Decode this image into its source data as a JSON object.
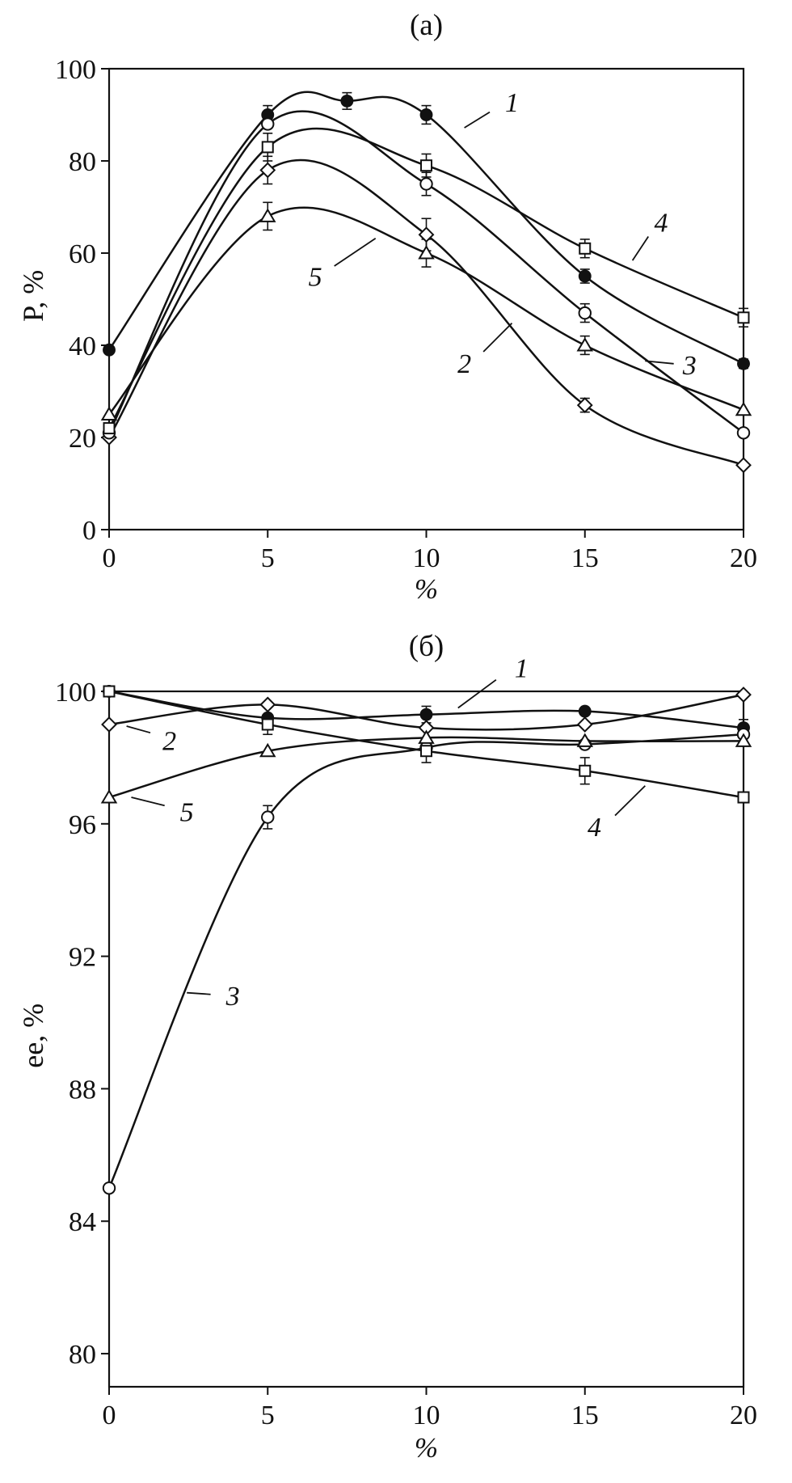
{
  "chart_data": [
    {
      "id": "a",
      "type": "line",
      "title": "(a)",
      "ylabel": "P, %",
      "xlabel": "%",
      "xlim": [
        0,
        20
      ],
      "ylim": [
        0,
        100
      ],
      "xticks": [
        0,
        5,
        10,
        15,
        20
      ],
      "yticks": [
        0,
        20,
        40,
        60,
        80,
        100
      ],
      "grid": false,
      "legend": "numeric labels on curves",
      "series": [
        {
          "name": "1",
          "marker": "circle-filled",
          "points": [
            [
              0,
              39
            ],
            [
              5,
              90
            ],
            [
              7.5,
              93
            ],
            [
              10,
              90
            ],
            [
              15,
              55
            ],
            [
              20,
              36
            ]
          ],
          "errors": [
            0,
            2,
            1.8,
            2,
            1.5,
            1
          ]
        },
        {
          "name": "2",
          "marker": "diamond-open",
          "points": [
            [
              0,
              20
            ],
            [
              5,
              78
            ],
            [
              10,
              64
            ],
            [
              15,
              27
            ],
            [
              20,
              14
            ]
          ],
          "errors": [
            0,
            3,
            3.5,
            1.5,
            0
          ]
        },
        {
          "name": "3",
          "marker": "circle-open",
          "points": [
            [
              0,
              21
            ],
            [
              5,
              88
            ],
            [
              10,
              75
            ],
            [
              15,
              47
            ],
            [
              20,
              21
            ]
          ],
          "errors": [
            0,
            0,
            2.5,
            2,
            0
          ]
        },
        {
          "name": "4",
          "marker": "square-open",
          "points": [
            [
              0,
              22
            ],
            [
              5,
              83
            ],
            [
              10,
              79
            ],
            [
              15,
              61
            ],
            [
              20,
              46
            ]
          ],
          "errors": [
            0,
            3,
            2.5,
            2,
            2
          ]
        },
        {
          "name": "5",
          "marker": "triangle-open",
          "points": [
            [
              0,
              25
            ],
            [
              5,
              68
            ],
            [
              10,
              60
            ],
            [
              15,
              40
            ],
            [
              20,
              26
            ]
          ],
          "errors": [
            0,
            3,
            3,
            2,
            0
          ]
        }
      ],
      "annotations": [
        {
          "text": "1",
          "x": 12.7,
          "y": 92.6,
          "line": [
            12.0,
            90.6,
            11.2,
            87.2
          ]
        },
        {
          "text": "2",
          "x": 11.2,
          "y": 36.0,
          "line": [
            11.8,
            38.6,
            12.7,
            44.8
          ]
        },
        {
          "text": "3",
          "x": 18.3,
          "y": 35.6,
          "line": [
            17.8,
            36.0,
            16.9,
            36.6
          ]
        },
        {
          "text": "4",
          "x": 17.4,
          "y": 66.6,
          "line": [
            17.0,
            63.6,
            16.5,
            58.4
          ]
        },
        {
          "text": "5",
          "x": 6.5,
          "y": 54.8,
          "line": [
            7.1,
            57.2,
            8.4,
            63.2
          ]
        }
      ]
    },
    {
      "id": "b",
      "type": "line",
      "title": "(б)",
      "ylabel": "ee, %",
      "xlabel": "%",
      "xlim": [
        0,
        20
      ],
      "ylim": [
        79,
        100
      ],
      "xticks": [
        0,
        5,
        10,
        15,
        20
      ],
      "yticks": [
        80,
        84,
        88,
        92,
        96,
        100
      ],
      "grid": false,
      "legend": "numeric labels on curves",
      "series": [
        {
          "name": "1",
          "marker": "circle-filled",
          "points": [
            [
              0,
              100
            ],
            [
              5,
              99.2
            ],
            [
              10,
              99.3
            ],
            [
              15,
              99.4
            ],
            [
              20,
              98.9
            ]
          ],
          "errors": [
            0,
            0,
            0.25,
            0,
            0.25
          ]
        },
        {
          "name": "2",
          "marker": "diamond-open",
          "points": [
            [
              0,
              99
            ],
            [
              5,
              99.6
            ],
            [
              10,
              98.9
            ],
            [
              15,
              99
            ],
            [
              20,
              99.9
            ]
          ],
          "errors": [
            0,
            0,
            0,
            0,
            0
          ]
        },
        {
          "name": "3",
          "marker": "circle-open",
          "points": [
            [
              0,
              85
            ],
            [
              5,
              96.2
            ],
            [
              10,
              98.3
            ],
            [
              15,
              98.4
            ],
            [
              20,
              98.7
            ]
          ],
          "errors": [
            0,
            0.35,
            0,
            0,
            0
          ]
        },
        {
          "name": "4",
          "marker": "square-open",
          "points": [
            [
              0,
              100
            ],
            [
              5,
              99
            ],
            [
              10,
              98.2
            ],
            [
              15,
              97.6
            ],
            [
              20,
              96.8
            ]
          ],
          "errors": [
            0,
            0.3,
            0.35,
            0.4,
            0
          ]
        },
        {
          "name": "5",
          "marker": "triangle-open",
          "points": [
            [
              0,
              96.8
            ],
            [
              5,
              98.2
            ],
            [
              10,
              98.6
            ],
            [
              15,
              98.5
            ],
            [
              20,
              98.5
            ]
          ],
          "errors": [
            0,
            0,
            0,
            0,
            0
          ]
        }
      ],
      "annotations": [
        {
          "text": "1",
          "x": 13.0,
          "y": 100.7,
          "line": [
            12.2,
            100.35,
            11.0,
            99.5
          ]
        },
        {
          "text": "2",
          "x": 1.9,
          "y": 98.5,
          "line": [
            1.3,
            98.75,
            0.55,
            98.95
          ]
        },
        {
          "text": "3",
          "x": 3.9,
          "y": 90.8,
          "line": [
            3.2,
            90.85,
            2.45,
            90.9
          ]
        },
        {
          "text": "4",
          "x": 15.3,
          "y": 95.9,
          "line": [
            15.95,
            96.25,
            16.9,
            97.15
          ]
        },
        {
          "text": "5",
          "x": 2.45,
          "y": 96.35,
          "line": [
            1.75,
            96.55,
            0.7,
            96.8
          ]
        }
      ]
    }
  ]
}
